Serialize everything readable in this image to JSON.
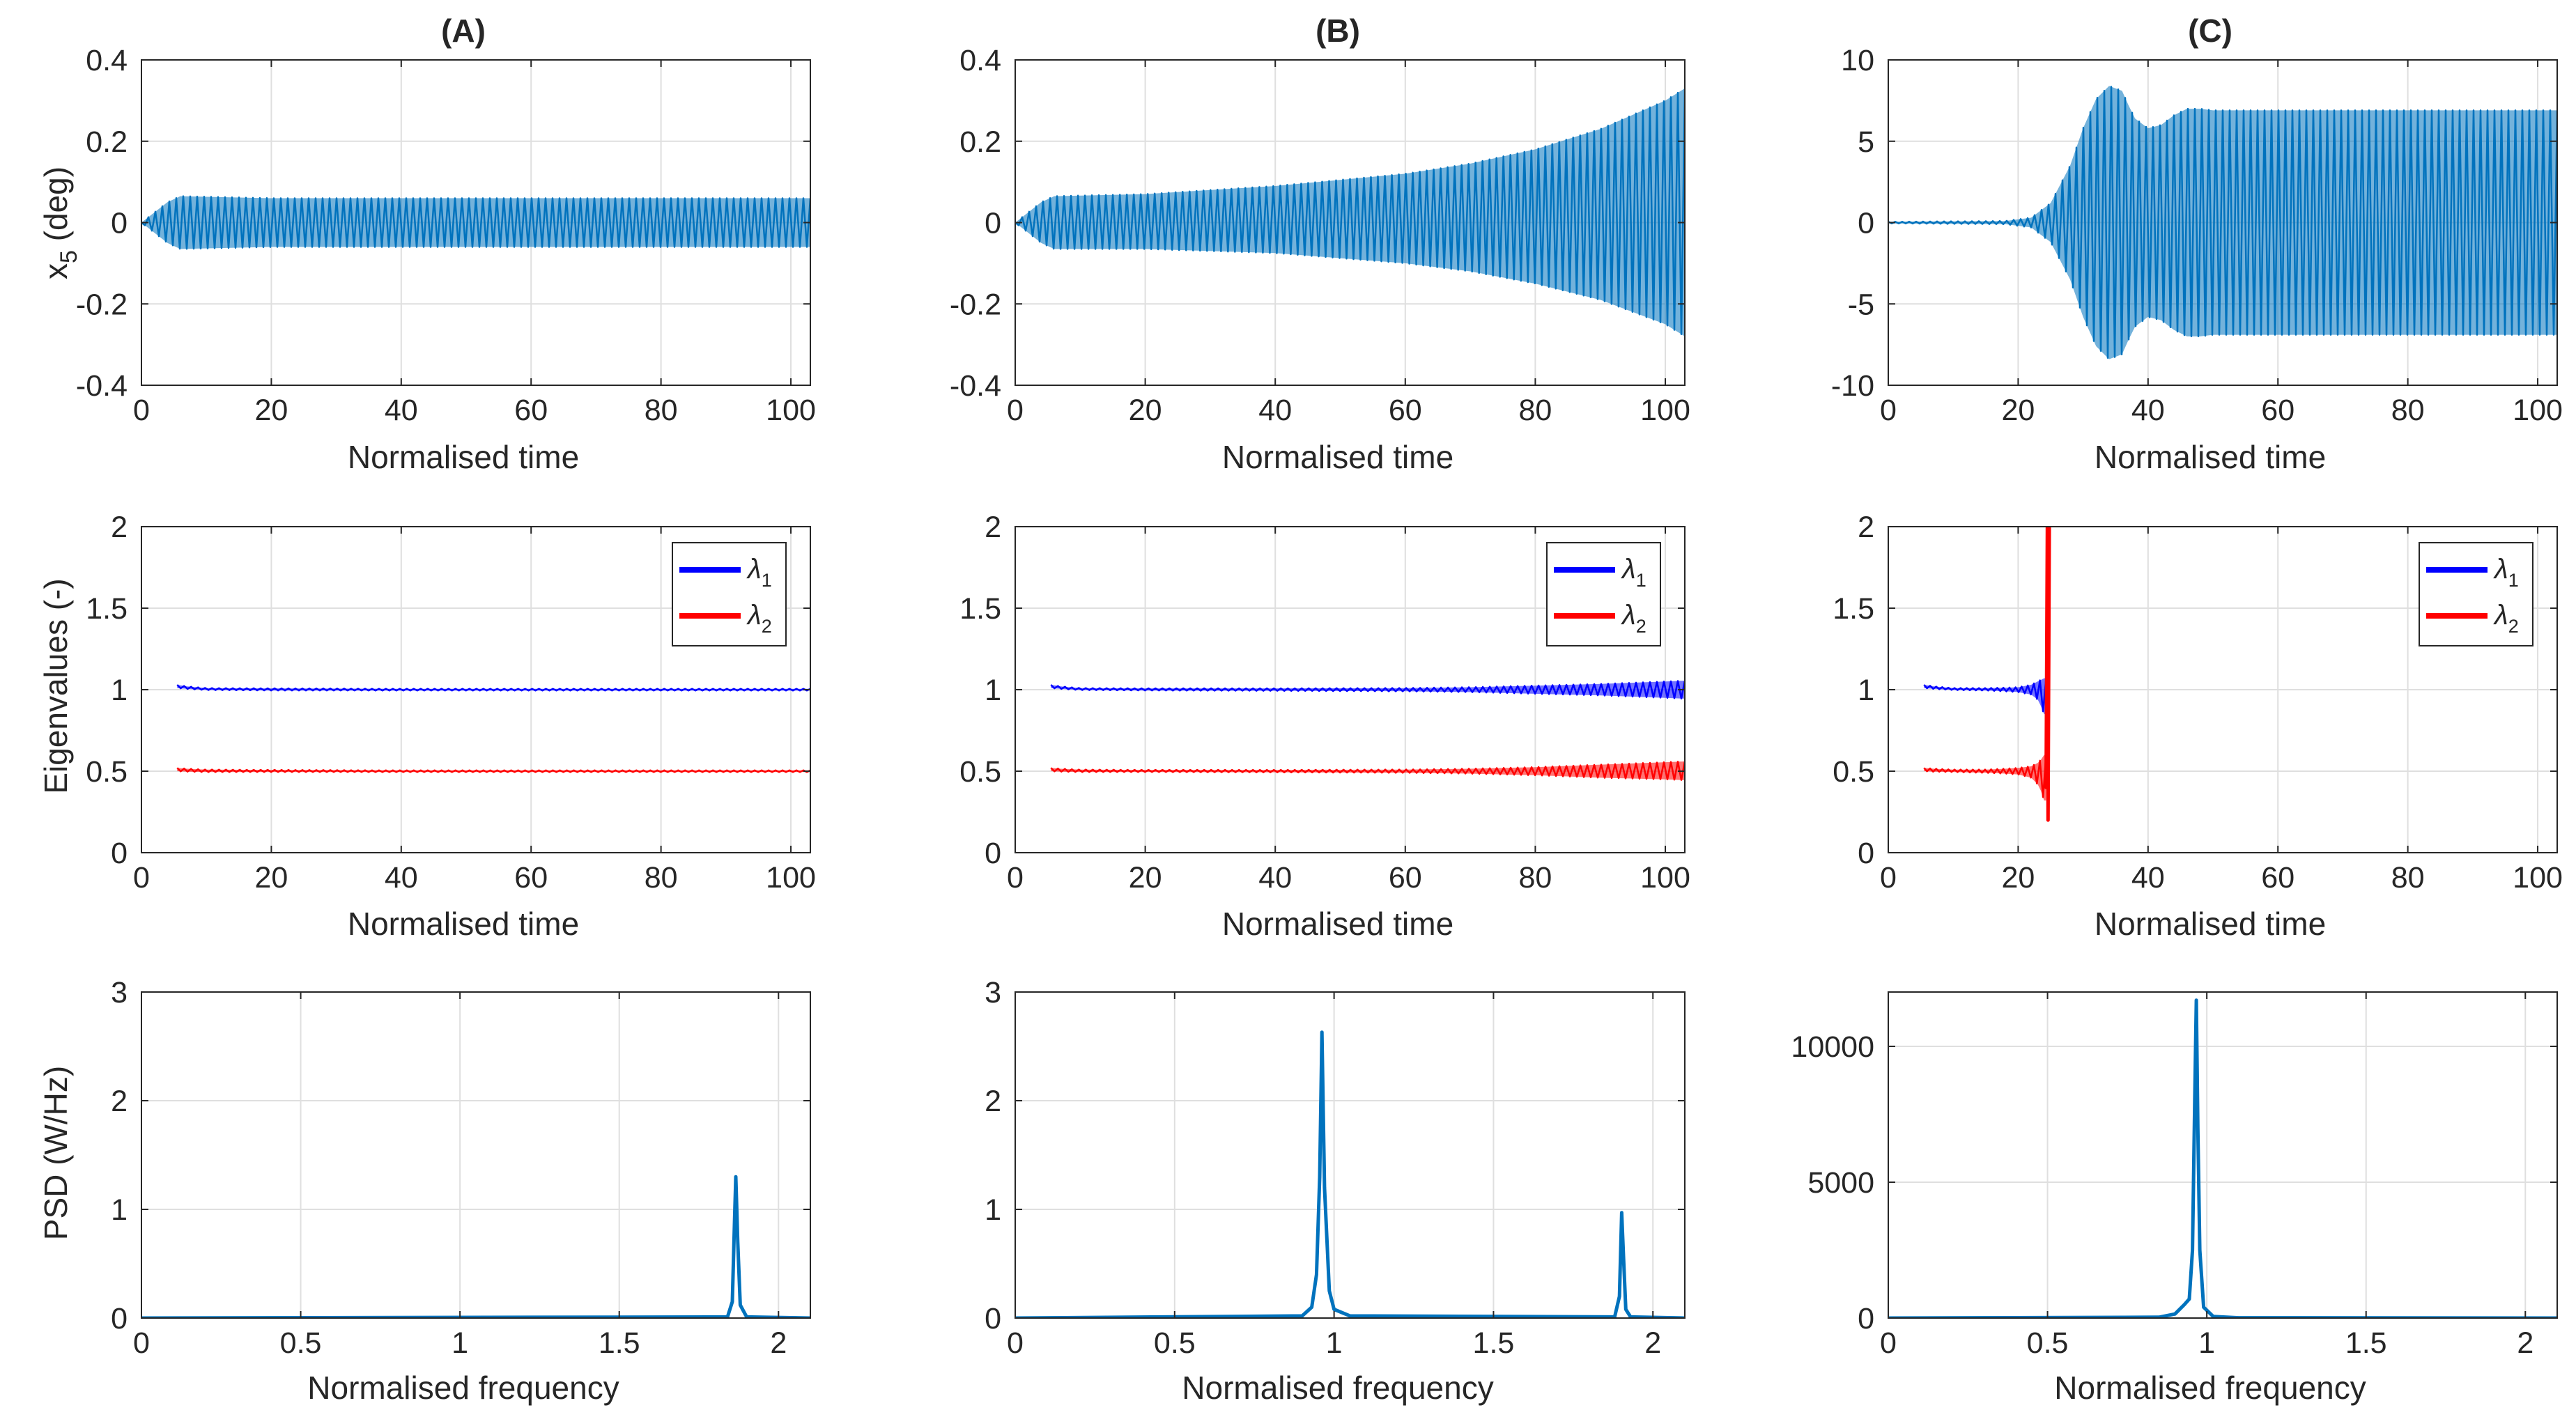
{
  "colors": {
    "signal": "#0072BD",
    "lambda1": "#0000FF",
    "lambda2": "#FF0000",
    "grid": "#DFDFDF",
    "axis": "#262626"
  },
  "labels": {
    "time_x": "Normalised time",
    "freq_x": "Normalised frequency",
    "x5_main": "x",
    "x5_sub": "5",
    "x5_unit": " (deg)",
    "eig_y": "Eigenvalues (-)",
    "psd_y": "PSD (W/Hz)",
    "lambda_glyph": "λ",
    "lambda1_sub": "1",
    "lambda2_sub": "2"
  },
  "chart_data": [
    {
      "id": "A-signal",
      "type": "line",
      "title": "(A)",
      "xlabel": "Normalised time",
      "ylabel": "x5 (deg)",
      "xlim": [
        0,
        103
      ],
      "ylim": [
        -0.4,
        0.4
      ],
      "grid": true,
      "xticks": [
        0,
        20,
        40,
        60,
        80,
        100
      ],
      "xticklabels": [
        "0",
        "20",
        "40",
        "60",
        "80",
        "100"
      ],
      "yticks": [
        -0.4,
        -0.2,
        0,
        0.2,
        0.4
      ],
      "yticklabels": [
        "-0.4",
        "-0.2",
        "0",
        "0.2",
        "0.4"
      ],
      "series": [
        {
          "kind": "envelope",
          "color": "#0072BD",
          "x": [
            0,
            2,
            4,
            6,
            20,
            40,
            60,
            80,
            100,
            103
          ],
          "upper": [
            0,
            0.025,
            0.05,
            0.065,
            0.06,
            0.06,
            0.06,
            0.06,
            0.06,
            0.06
          ],
          "lower": [
            0,
            -0.025,
            -0.05,
            -0.065,
            -0.06,
            -0.06,
            -0.06,
            -0.06,
            -0.06,
            -0.06
          ]
        }
      ]
    },
    {
      "id": "B-signal",
      "type": "line",
      "title": "(B)",
      "xlabel": "Normalised time",
      "ylabel": "",
      "xlim": [
        0,
        103
      ],
      "ylim": [
        -0.4,
        0.4
      ],
      "grid": true,
      "xticks": [
        0,
        20,
        40,
        60,
        80,
        100
      ],
      "xticklabels": [
        "0",
        "20",
        "40",
        "60",
        "80",
        "100"
      ],
      "yticks": [
        -0.4,
        -0.2,
        0,
        0.2,
        0.4
      ],
      "yticklabels": [
        "-0.4",
        "-0.2",
        "0",
        "0.2",
        "0.4"
      ],
      "series": [
        {
          "kind": "envelope",
          "color": "#0072BD",
          "x": [
            0,
            2,
            4,
            6,
            20,
            40,
            60,
            70,
            80,
            90,
            100,
            103
          ],
          "upper": [
            0,
            0.025,
            0.05,
            0.065,
            0.07,
            0.09,
            0.12,
            0.145,
            0.18,
            0.23,
            0.3,
            0.33
          ],
          "lower": [
            0,
            -0.025,
            -0.05,
            -0.065,
            -0.065,
            -0.075,
            -0.1,
            -0.12,
            -0.15,
            -0.19,
            -0.25,
            -0.28
          ]
        }
      ]
    },
    {
      "id": "C-signal",
      "type": "line",
      "title": "(C)",
      "xlabel": "Normalised time",
      "ylabel": "",
      "xlim": [
        0,
        103
      ],
      "ylim": [
        -10,
        10
      ],
      "grid": true,
      "xticks": [
        0,
        20,
        40,
        60,
        80,
        100
      ],
      "xticklabels": [
        "0",
        "20",
        "40",
        "60",
        "80",
        "100"
      ],
      "yticks": [
        -10,
        -5,
        0,
        5,
        10
      ],
      "yticklabels": [
        "-10",
        "-5",
        "0",
        "5",
        "10"
      ],
      "series": [
        {
          "kind": "envelope",
          "color": "#0072BD",
          "x": [
            0,
            18,
            22,
            25,
            28,
            30,
            32,
            34,
            36,
            37,
            38,
            40,
            42,
            44,
            46,
            48,
            50,
            53,
            55,
            60,
            80,
            100,
            103
          ],
          "upper": [
            0.05,
            0.1,
            0.3,
            1.2,
            3.5,
            5.8,
            7.6,
            8.4,
            8.1,
            7.2,
            6.4,
            5.8,
            6.0,
            6.6,
            7.0,
            7.0,
            6.9,
            6.9,
            6.9,
            6.9,
            6.9,
            6.9,
            6.9
          ],
          "lower": [
            -0.05,
            -0.1,
            -0.3,
            -1.2,
            -3.5,
            -5.8,
            -7.6,
            -8.4,
            -8.1,
            -7.2,
            -6.4,
            -5.8,
            -6.0,
            -6.6,
            -7.0,
            -7.0,
            -6.9,
            -6.9,
            -6.9,
            -6.9,
            -6.9,
            -6.9,
            -6.9
          ]
        }
      ]
    },
    {
      "id": "A-eig",
      "type": "line",
      "title": "",
      "xlabel": "Normalised time",
      "ylabel": "Eigenvalues (-)",
      "xlim": [
        0,
        103
      ],
      "ylim": [
        0,
        2
      ],
      "grid": true,
      "xticks": [
        0,
        20,
        40,
        60,
        80,
        100
      ],
      "xticklabels": [
        "0",
        "20",
        "40",
        "60",
        "80",
        "100"
      ],
      "yticks": [
        0,
        0.5,
        1,
        1.5,
        2
      ],
      "yticklabels": [
        "0",
        "0.5",
        "1",
        "1.5",
        "2"
      ],
      "legend": {
        "position": "top-right",
        "entries": [
          "λ1",
          "λ2"
        ]
      },
      "series": [
        {
          "name": "λ1",
          "kind": "envelope",
          "color": "#0000FF",
          "x": [
            5.5,
            7,
            10,
            20,
            40,
            60,
            80,
            100,
            103
          ],
          "upper": [
            1.03,
            1.02,
            1.01,
            1.008,
            1.005,
            1.005,
            1.005,
            1.005,
            1.005
          ],
          "lower": [
            1.01,
            1.005,
            0.998,
            0.995,
            0.995,
            0.995,
            0.995,
            0.995,
            0.995
          ]
        },
        {
          "name": "λ2",
          "kind": "envelope",
          "color": "#FF0000",
          "x": [
            5.5,
            7,
            10,
            20,
            40,
            60,
            80,
            100,
            103
          ],
          "upper": [
            0.52,
            0.515,
            0.51,
            0.508,
            0.505,
            0.505,
            0.505,
            0.505,
            0.505
          ],
          "lower": [
            0.5,
            0.497,
            0.495,
            0.495,
            0.495,
            0.495,
            0.495,
            0.495,
            0.495
          ]
        }
      ]
    },
    {
      "id": "B-eig",
      "type": "line",
      "title": "",
      "xlabel": "Normalised time",
      "ylabel": "",
      "xlim": [
        0,
        103
      ],
      "ylim": [
        0,
        2
      ],
      "grid": true,
      "xticks": [
        0,
        20,
        40,
        60,
        80,
        100
      ],
      "xticklabels": [
        "0",
        "20",
        "40",
        "60",
        "80",
        "100"
      ],
      "yticks": [
        0,
        0.5,
        1,
        1.5,
        2
      ],
      "yticklabels": [
        "0",
        "0.5",
        "1",
        "1.5",
        "2"
      ],
      "legend": {
        "position": "top-right",
        "entries": [
          "λ1",
          "λ2"
        ]
      },
      "series": [
        {
          "name": "λ1",
          "kind": "envelope",
          "color": "#0000FF",
          "x": [
            5.5,
            7,
            10,
            20,
            40,
            60,
            70,
            80,
            90,
            100,
            103
          ],
          "upper": [
            1.03,
            1.02,
            1.01,
            1.008,
            1.008,
            1.01,
            1.015,
            1.025,
            1.035,
            1.05,
            1.055
          ],
          "lower": [
            1.01,
            1.005,
            0.998,
            0.995,
            0.993,
            0.99,
            0.985,
            0.975,
            0.965,
            0.95,
            0.945
          ]
        },
        {
          "name": "λ2",
          "kind": "envelope",
          "color": "#FF0000",
          "x": [
            5.5,
            7,
            10,
            20,
            40,
            60,
            70,
            80,
            90,
            100,
            103
          ],
          "upper": [
            0.52,
            0.515,
            0.51,
            0.508,
            0.508,
            0.51,
            0.515,
            0.525,
            0.54,
            0.555,
            0.56
          ],
          "lower": [
            0.5,
            0.497,
            0.495,
            0.495,
            0.493,
            0.49,
            0.485,
            0.475,
            0.46,
            0.45,
            0.445
          ]
        }
      ]
    },
    {
      "id": "C-eig",
      "type": "line",
      "title": "",
      "xlabel": "Normalised time",
      "ylabel": "",
      "xlim": [
        0,
        103
      ],
      "ylim": [
        0,
        2
      ],
      "grid": true,
      "xticks": [
        0,
        20,
        40,
        60,
        80,
        100
      ],
      "xticklabels": [
        "0",
        "20",
        "40",
        "60",
        "80",
        "100"
      ],
      "yticks": [
        0,
        0.5,
        1,
        1.5,
        2
      ],
      "yticklabels": [
        "0",
        "0.5",
        "1",
        "1.5",
        "2"
      ],
      "legend": {
        "position": "top-right",
        "entries": [
          "λ1",
          "λ2"
        ]
      },
      "series": [
        {
          "name": "λ1",
          "kind": "envelope",
          "color": "#0000FF",
          "x": [
            5.5,
            7,
            10,
            15,
            18,
            20,
            22,
            23,
            23.5,
            24,
            24.3
          ],
          "upper": [
            1.03,
            1.02,
            1.01,
            1.01,
            1.012,
            1.015,
            1.03,
            1.05,
            1.06,
            1.07,
            1.07
          ],
          "lower": [
            1.01,
            1.005,
            0.998,
            0.995,
            0.99,
            0.985,
            0.97,
            0.94,
            0.9,
            0.85,
            0.85
          ]
        },
        {
          "name": "λ2",
          "kind": "envelope",
          "color": "#FF0000",
          "x": [
            5.5,
            7,
            10,
            15,
            18,
            20,
            22,
            23,
            23.5,
            24,
            24.3
          ],
          "upper": [
            0.52,
            0.515,
            0.51,
            0.51,
            0.515,
            0.52,
            0.53,
            0.55,
            0.57,
            0.6,
            0.6
          ],
          "lower": [
            0.5,
            0.497,
            0.495,
            0.49,
            0.485,
            0.48,
            0.46,
            0.42,
            0.38,
            0.32,
            0.32
          ]
        },
        {
          "name": "λ2",
          "kind": "line",
          "color": "#FF0000",
          "x": [
            24.3,
            24.5,
            24.6,
            24.8
          ],
          "y": [
            0.4,
            2.0,
            0.2,
            2.0
          ]
        }
      ]
    },
    {
      "id": "A-psd",
      "type": "line",
      "title": "",
      "xlabel": "Normalised frequency",
      "ylabel": "PSD (W/Hz)",
      "xlim": [
        0,
        2.1
      ],
      "ylim": [
        0,
        3
      ],
      "grid": true,
      "xticks": [
        0,
        0.5,
        1,
        1.5,
        2
      ],
      "xticklabels": [
        "0",
        "0.5",
        "1",
        "1.5",
        "2"
      ],
      "yticks": [
        0,
        1,
        2,
        3
      ],
      "yticklabels": [
        "0",
        "1",
        "2",
        "3"
      ],
      "series": [
        {
          "kind": "line",
          "color": "#0072BD",
          "x": [
            0,
            1.84,
            1.855,
            1.862,
            1.866,
            1.872,
            1.88,
            1.9,
            2.1
          ],
          "y": [
            0,
            0.01,
            0.15,
            0.9,
            1.3,
            0.7,
            0.12,
            0.01,
            0
          ]
        }
      ]
    },
    {
      "id": "B-psd",
      "type": "line",
      "title": "",
      "xlabel": "Normalised frequency",
      "ylabel": "",
      "xlim": [
        0,
        2.1
      ],
      "ylim": [
        0,
        3
      ],
      "grid": true,
      "xticks": [
        0,
        0.5,
        1,
        1.5,
        2
      ],
      "xticklabels": [
        "0",
        "0.5",
        "1",
        "1.5",
        "2"
      ],
      "yticks": [
        0,
        1,
        2,
        3
      ],
      "yticklabels": [
        "0",
        "1",
        "2",
        "3"
      ],
      "series": [
        {
          "kind": "line",
          "color": "#0072BD",
          "x": [
            0,
            0.9,
            0.93,
            0.945,
            0.955,
            0.962,
            0.97,
            0.985,
            1.0,
            1.05,
            1.88,
            1.895,
            1.902,
            1.908,
            1.915,
            1.93,
            2.1
          ],
          "y": [
            0,
            0.02,
            0.1,
            0.4,
            1.3,
            2.63,
            1.2,
            0.25,
            0.08,
            0.02,
            0.01,
            0.2,
            0.97,
            0.55,
            0.08,
            0.01,
            0
          ]
        }
      ]
    },
    {
      "id": "C-psd",
      "type": "line",
      "title": "",
      "xlabel": "Normalised frequency",
      "ylabel": "",
      "xlim": [
        0,
        2.1
      ],
      "ylim": [
        0,
        12000
      ],
      "grid": true,
      "xticks": [
        0,
        0.5,
        1,
        1.5,
        2
      ],
      "xticklabels": [
        "0",
        "0.5",
        "1",
        "1.5",
        "2"
      ],
      "yticks": [
        0,
        5000,
        10000
      ],
      "yticklabels": [
        "0",
        "5000",
        "10000"
      ],
      "series": [
        {
          "kind": "line",
          "color": "#0072BD",
          "x": [
            0,
            0.85,
            0.9,
            0.93,
            0.945,
            0.955,
            0.962,
            0.967,
            0.972,
            0.978,
            0.99,
            1.02,
            1.1,
            2.1
          ],
          "y": [
            0,
            30,
            150,
            500,
            700,
            2500,
            8000,
            11700,
            7000,
            2500,
            400,
            60,
            10,
            0
          ]
        }
      ]
    }
  ]
}
